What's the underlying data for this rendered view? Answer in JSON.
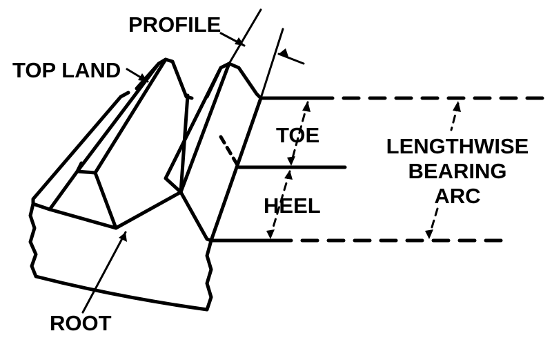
{
  "labels": {
    "profile": "PROFILE",
    "top_land": "TOP LAND",
    "toe": "TOE",
    "heel": "HEEL",
    "root": "ROOT",
    "lengthwise_line1": "LENGTHWISE",
    "lengthwise_line2": "BEARING",
    "lengthwise_line3": "ARC"
  },
  "colors": {
    "ink": "#000000",
    "paper": "#ffffff"
  }
}
